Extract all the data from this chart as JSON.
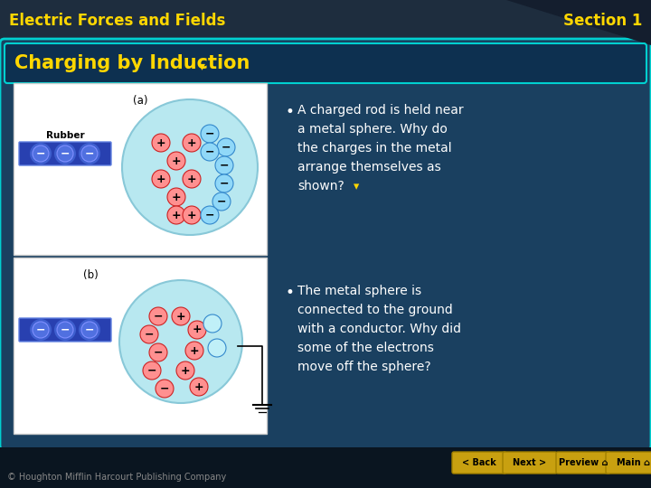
{
  "title_left": "Electric Forces and Fields",
  "title_right": "Section 1",
  "section_title": "Charging by Induction",
  "bullet1_line1": "A charged rod is held near",
  "bullet1_line2": "a metal sphere. Why do",
  "bullet1_line3": "the charges in the metal",
  "bullet1_line4": "arrange themselves as",
  "bullet1_line5": "shown?",
  "bullet2_line1": "The metal sphere is",
  "bullet2_line2": "connected to the ground",
  "bullet2_line3": "with a conductor. Why did",
  "bullet2_line4": "some of the electrons",
  "bullet2_line5": "move off the sphere?",
  "copyright": "© Houghton Mifflin Harcourt Publishing Company",
  "bg_dark": "#1a2a3a",
  "bg_header": "#1e2d3e",
  "card_bg": "#1a4060",
  "card_border": "#00d0d0",
  "title_bar_bg": "#0d3050",
  "title_yellow": "#FFD700",
  "text_white": "#ffffff",
  "diagram_bg": "#f0f8ff",
  "sphere_fill_a": "#b8e8f0",
  "sphere_edge_a": "#88c8d8",
  "rubber_fill": "#2840b0",
  "rubber_edge": "#6080e0",
  "pos_charge_fill": "#ff9090",
  "pos_charge_edge": "#cc2222",
  "neg_charge_fill": "#90d8f8",
  "neg_charge_edge": "#3388cc",
  "nav_bg": "#c8a010",
  "nav_edge": "#a08000",
  "footer_bg": "#0a1520",
  "copyright_color": "#888888",
  "corner_dark": "#141e2e"
}
